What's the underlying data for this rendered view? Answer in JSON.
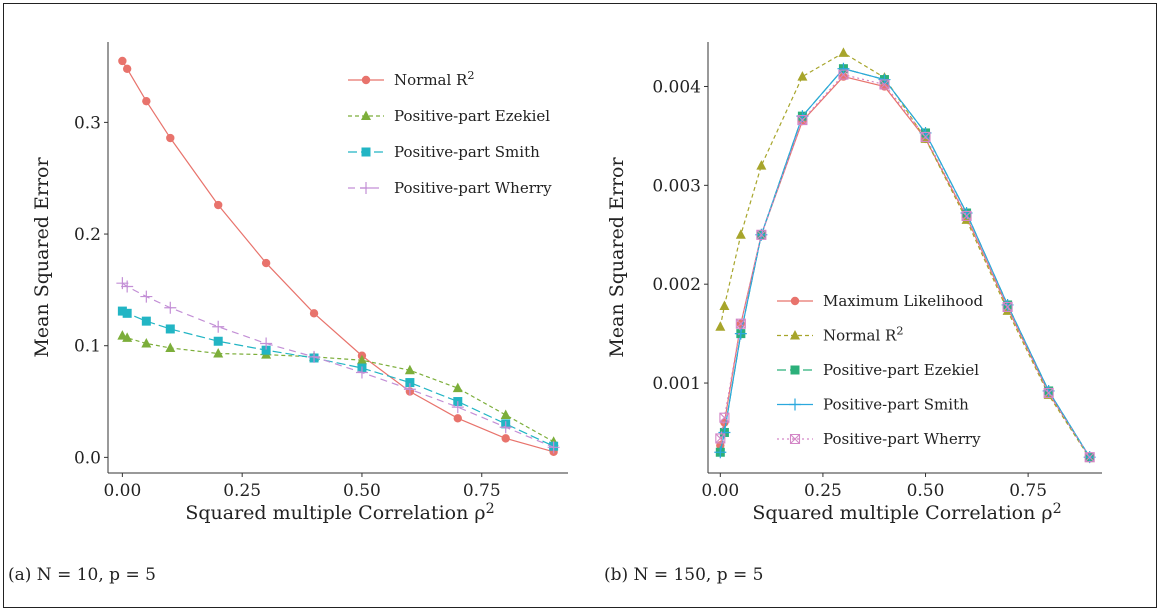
{
  "chart_data": [
    {
      "panel": "a",
      "type": "line",
      "caption": "(a) N = 10, p = 5",
      "xlabel": "Squared multiple Correlation ρ²",
      "ylabel": "Mean Squared Error",
      "xlim": [
        -0.03,
        0.93
      ],
      "ylim": [
        -0.014,
        0.372
      ],
      "xticks": [
        0.0,
        0.25,
        0.5,
        0.75
      ],
      "xticklabels": [
        "0.00",
        "0.25",
        "0.50",
        "0.75"
      ],
      "yticks": [
        0.0,
        0.1,
        0.2,
        0.3
      ],
      "yticklabels": [
        "0.0",
        "0.1",
        "0.2",
        "0.3"
      ],
      "legend_position": "top-right",
      "series": [
        {
          "name": "Normal R²",
          "color": "#e8736c",
          "marker": "circle",
          "dash": "solid",
          "x": [
            0.0,
            0.01,
            0.05,
            0.1,
            0.2,
            0.3,
            0.4,
            0.5,
            0.6,
            0.7,
            0.8,
            0.9
          ],
          "y": [
            0.355,
            0.348,
            0.319,
            0.286,
            0.226,
            0.174,
            0.129,
            0.091,
            0.059,
            0.035,
            0.017,
            0.005
          ]
        },
        {
          "name": "Positive-part Ezekiel",
          "color": "#7cae3a",
          "marker": "triangle",
          "dash": "4,3",
          "x": [
            0.0,
            0.01,
            0.05,
            0.1,
            0.2,
            0.3,
            0.4,
            0.5,
            0.6,
            0.7,
            0.8,
            0.9
          ],
          "y": [
            0.109,
            0.107,
            0.102,
            0.098,
            0.093,
            0.092,
            0.09,
            0.087,
            0.078,
            0.062,
            0.038,
            0.014
          ]
        },
        {
          "name": "Positive-part Smith",
          "color": "#22b5c4",
          "marker": "square",
          "dash": "9,4",
          "x": [
            0.0,
            0.01,
            0.05,
            0.1,
            0.2,
            0.3,
            0.4,
            0.5,
            0.6,
            0.7,
            0.8,
            0.9
          ],
          "y": [
            0.131,
            0.129,
            0.122,
            0.115,
            0.104,
            0.096,
            0.089,
            0.08,
            0.067,
            0.05,
            0.03,
            0.01
          ]
        },
        {
          "name": "Positive-part Wherry",
          "color": "#c38fd6",
          "marker": "plus",
          "dash": "7,5",
          "x": [
            0.0,
            0.01,
            0.05,
            0.1,
            0.2,
            0.3,
            0.4,
            0.5,
            0.6,
            0.7,
            0.8,
            0.9
          ],
          "y": [
            0.156,
            0.153,
            0.144,
            0.134,
            0.117,
            0.102,
            0.09,
            0.076,
            0.061,
            0.045,
            0.027,
            0.009
          ]
        }
      ]
    },
    {
      "panel": "b",
      "type": "line",
      "caption": "(b) N = 150, p = 5",
      "xlabel": "Squared multiple Correlation ρ²",
      "ylabel": "Mean Squared Error",
      "xlim": [
        -0.03,
        0.93
      ],
      "ylim": [
        9e-05,
        0.00445
      ],
      "xticks": [
        0.0,
        0.25,
        0.5,
        0.75
      ],
      "xticklabels": [
        "0.00",
        "0.25",
        "0.50",
        "0.75"
      ],
      "yticks": [
        0.001,
        0.002,
        0.003,
        0.004
      ],
      "yticklabels": [
        "0.001",
        "0.002",
        "0.003",
        "0.004"
      ],
      "legend_position": "bottom-center",
      "series": [
        {
          "name": "Maximum Likelihood",
          "color": "#e8736c",
          "marker": "circle",
          "dash": "solid",
          "x": [
            0.0,
            0.01,
            0.05,
            0.1,
            0.2,
            0.3,
            0.4,
            0.5,
            0.6,
            0.7,
            0.8,
            0.9
          ],
          "y": [
            0.00037,
            0.0006,
            0.0016,
            0.0025,
            0.00365,
            0.0041,
            0.004,
            0.00347,
            0.00268,
            0.00176,
            0.0009,
            0.00025
          ]
        },
        {
          "name": "Normal R²",
          "color": "#a7a52b",
          "marker": "triangle",
          "dash": "4,3",
          "x": [
            0.0,
            0.01,
            0.05,
            0.1,
            0.2,
            0.3,
            0.4,
            0.5,
            0.6,
            0.7,
            0.8,
            0.9
          ],
          "y": [
            0.00157,
            0.00178,
            0.0025,
            0.0032,
            0.0041,
            0.00434,
            0.00409,
            0.00347,
            0.00265,
            0.00173,
            0.00088,
            0.00024
          ]
        },
        {
          "name": "Positive-part Ezekiel",
          "color": "#2cb07a",
          "marker": "square",
          "dash": "9,4",
          "x": [
            0.0,
            0.01,
            0.05,
            0.1,
            0.2,
            0.3,
            0.4,
            0.5,
            0.6,
            0.7,
            0.8,
            0.9
          ],
          "y": [
            0.0003,
            0.0005,
            0.0015,
            0.0025,
            0.0037,
            0.00418,
            0.00407,
            0.00353,
            0.00272,
            0.00179,
            0.00092,
            0.00025
          ]
        },
        {
          "name": "Positive-part Smith",
          "color": "#2aa8dd",
          "marker": "plus",
          "dash": "solid",
          "x": [
            0.0,
            0.01,
            0.05,
            0.1,
            0.2,
            0.3,
            0.4,
            0.5,
            0.6,
            0.7,
            0.8,
            0.9
          ],
          "y": [
            0.0003,
            0.0005,
            0.0015,
            0.0025,
            0.0037,
            0.00418,
            0.00407,
            0.00353,
            0.00272,
            0.00179,
            0.00092,
            0.00025
          ]
        },
        {
          "name": "Positive-part Wherry",
          "color": "#d386c6",
          "marker": "boxx",
          "dash": "2,3",
          "x": [
            0.0,
            0.01,
            0.05,
            0.1,
            0.2,
            0.3,
            0.4,
            0.5,
            0.6,
            0.7,
            0.8,
            0.9
          ],
          "y": [
            0.00044,
            0.00065,
            0.0016,
            0.0025,
            0.00366,
            0.00412,
            0.00402,
            0.00349,
            0.00269,
            0.00177,
            0.0009,
            0.00025
          ]
        }
      ]
    }
  ]
}
